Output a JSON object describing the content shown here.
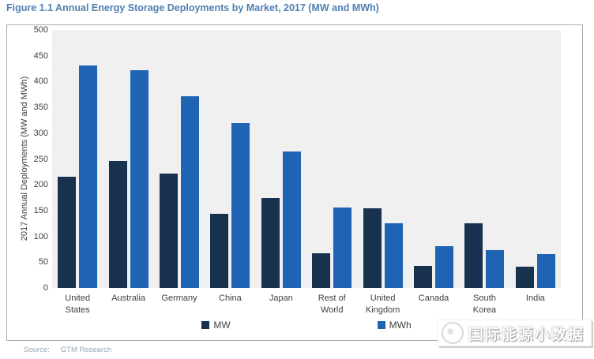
{
  "title": "Figure 1.1 Annual Energy Storage Deployments by Market, 2017  (MW and MWh)",
  "source": {
    "label": "Source:",
    "value": "GTM Research"
  },
  "watermark": {
    "text": "国际能源小数据"
  },
  "colors": {
    "title_color": "#4E80B2",
    "mw_color": "#17314F",
    "mwh_color": "#1E63B4",
    "plot_bg": "#F0F0F1",
    "axis_text": "#404040",
    "border_color": "#A9A9A9",
    "source_text": "#95A5B8"
  },
  "chart_data": {
    "type": "bar",
    "title": "Figure 1.1 Annual Energy Storage Deployments by Market, 2017 (MW and MWh)",
    "categories": [
      "United States",
      "Australia",
      "Germany",
      "China",
      "Japan",
      "Rest of World",
      "United Kingdom",
      "Canada",
      "South Korea",
      "India"
    ],
    "series": [
      {
        "name": "MW",
        "color": "#17314F",
        "values": [
          215,
          246,
          221,
          144,
          174,
          68,
          155,
          43,
          125,
          41
        ]
      },
      {
        "name": "MWh",
        "color": "#1E63B4",
        "values": [
          431,
          422,
          372,
          320,
          264,
          156,
          126,
          81,
          73,
          66
        ]
      }
    ],
    "xlabel": "",
    "ylabel": "2017 Annual Deployments (MW and MWh)",
    "ylim": [
      0,
      500
    ],
    "ytick_step": 50,
    "grid": false,
    "legend_position": "bottom"
  }
}
